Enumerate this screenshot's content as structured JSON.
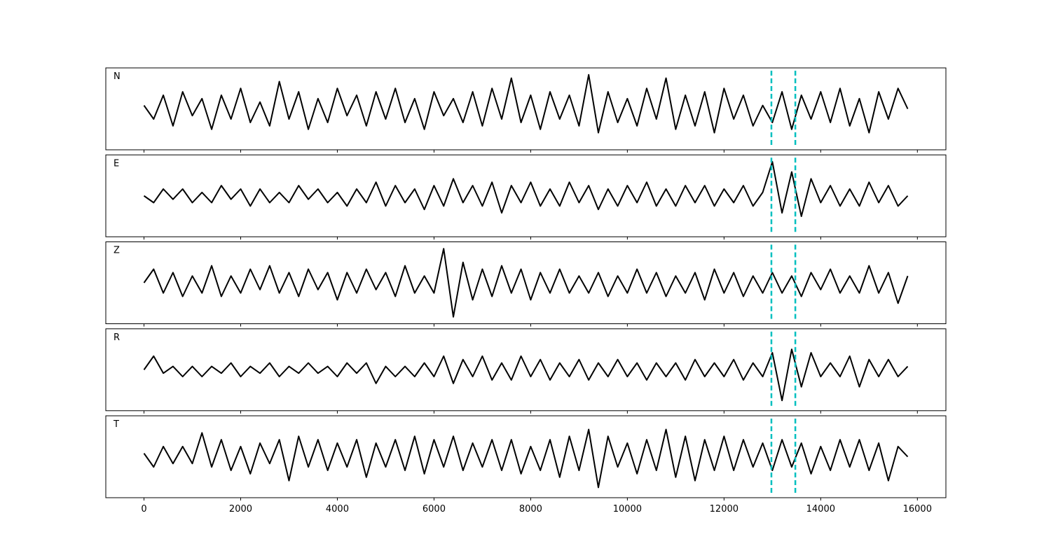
{
  "chart_data": {
    "type": "line",
    "subplots": true,
    "x": [
      0,
      200,
      400,
      600,
      800,
      1000,
      1200,
      1400,
      1600,
      1800,
      2000,
      2200,
      2400,
      2600,
      2800,
      3000,
      3200,
      3400,
      3600,
      3800,
      4000,
      4200,
      4400,
      4600,
      4800,
      5000,
      5200,
      5400,
      5600,
      5800,
      6000,
      6200,
      6400,
      6600,
      6800,
      7000,
      7200,
      7400,
      7600,
      7800,
      8000,
      8200,
      8400,
      8600,
      8800,
      9000,
      9200,
      9400,
      9600,
      9800,
      10000,
      10200,
      10400,
      10600,
      10800,
      11000,
      11200,
      11400,
      11600,
      11800,
      12000,
      12200,
      12400,
      12600,
      12800,
      13000,
      13200,
      13400,
      13600,
      13800,
      14000,
      14200,
      14400,
      14600,
      14800,
      15000,
      15200,
      15400,
      15600,
      15800
    ],
    "xlim": [
      -790,
      16590
    ],
    "xticks": [
      0,
      2000,
      4000,
      6000,
      8000,
      10000,
      12000,
      14000,
      16000
    ],
    "ylim": [
      -1.2,
      1.2
    ],
    "series": [
      {
        "name": "N",
        "color": "#000000",
        "values": [
          0.1,
          -0.3,
          0.4,
          -0.5,
          0.5,
          -0.2,
          0.3,
          -0.6,
          0.4,
          -0.3,
          0.6,
          -0.4,
          0.2,
          -0.5,
          0.8,
          -0.3,
          0.5,
          -0.6,
          0.3,
          -0.4,
          0.6,
          -0.2,
          0.4,
          -0.5,
          0.5,
          -0.3,
          0.6,
          -0.4,
          0.3,
          -0.6,
          0.5,
          -0.2,
          0.3,
          -0.4,
          0.5,
          -0.5,
          0.6,
          -0.3,
          0.9,
          -0.4,
          0.4,
          -0.6,
          0.5,
          -0.3,
          0.4,
          -0.5,
          1.0,
          -0.7,
          0.5,
          -0.4,
          0.3,
          -0.5,
          0.6,
          -0.3,
          0.9,
          -0.6,
          0.4,
          -0.5,
          0.5,
          -0.7,
          0.6,
          -0.3,
          0.4,
          -0.5,
          0.1,
          -0.4,
          0.5,
          -0.6,
          0.4,
          -0.3,
          0.5,
          -0.4,
          0.6,
          -0.5,
          0.3,
          -0.7,
          0.5,
          -0.3,
          0.6,
          0.0
        ]
      },
      {
        "name": "E",
        "color": "#000000",
        "values": [
          0.0,
          -0.2,
          0.2,
          -0.1,
          0.2,
          -0.2,
          0.1,
          -0.2,
          0.3,
          -0.1,
          0.2,
          -0.3,
          0.2,
          -0.2,
          0.1,
          -0.2,
          0.3,
          -0.1,
          0.2,
          -0.2,
          0.1,
          -0.3,
          0.2,
          -0.2,
          0.4,
          -0.3,
          0.3,
          -0.2,
          0.2,
          -0.4,
          0.3,
          -0.3,
          0.5,
          -0.2,
          0.3,
          -0.3,
          0.4,
          -0.5,
          0.3,
          -0.2,
          0.4,
          -0.3,
          0.2,
          -0.3,
          0.4,
          -0.2,
          0.3,
          -0.4,
          0.2,
          -0.3,
          0.3,
          -0.2,
          0.4,
          -0.3,
          0.2,
          -0.3,
          0.3,
          -0.2,
          0.3,
          -0.3,
          0.2,
          -0.2,
          0.3,
          -0.3,
          0.1,
          1.0,
          -0.5,
          0.7,
          -0.6,
          0.5,
          -0.2,
          0.3,
          -0.3,
          0.2,
          -0.3,
          0.4,
          -0.2,
          0.3,
          -0.3,
          0.0
        ]
      },
      {
        "name": "Z",
        "color": "#000000",
        "values": [
          0.0,
          0.4,
          -0.3,
          0.3,
          -0.4,
          0.2,
          -0.3,
          0.5,
          -0.4,
          0.2,
          -0.3,
          0.4,
          -0.2,
          0.5,
          -0.3,
          0.3,
          -0.4,
          0.4,
          -0.2,
          0.3,
          -0.5,
          0.3,
          -0.3,
          0.4,
          -0.2,
          0.3,
          -0.4,
          0.5,
          -0.3,
          0.2,
          -0.3,
          1.0,
          -1.0,
          0.6,
          -0.5,
          0.4,
          -0.4,
          0.5,
          -0.3,
          0.4,
          -0.5,
          0.3,
          -0.3,
          0.4,
          -0.3,
          0.2,
          -0.3,
          0.3,
          -0.4,
          0.2,
          -0.3,
          0.4,
          -0.3,
          0.3,
          -0.4,
          0.2,
          -0.3,
          0.3,
          -0.5,
          0.4,
          -0.3,
          0.3,
          -0.4,
          0.2,
          -0.3,
          0.3,
          -0.3,
          0.2,
          -0.4,
          0.3,
          -0.2,
          0.4,
          -0.3,
          0.2,
          -0.3,
          0.5,
          -0.3,
          0.3,
          -0.6,
          0.2
        ]
      },
      {
        "name": "R",
        "color": "#000000",
        "values": [
          0.0,
          0.4,
          -0.1,
          0.1,
          -0.2,
          0.1,
          -0.2,
          0.1,
          -0.1,
          0.2,
          -0.2,
          0.1,
          -0.1,
          0.2,
          -0.2,
          0.1,
          -0.1,
          0.2,
          -0.1,
          0.1,
          -0.2,
          0.2,
          -0.1,
          0.2,
          -0.4,
          0.1,
          -0.2,
          0.1,
          -0.2,
          0.2,
          -0.2,
          0.4,
          -0.4,
          0.3,
          -0.2,
          0.4,
          -0.3,
          0.2,
          -0.3,
          0.4,
          -0.2,
          0.3,
          -0.3,
          0.2,
          -0.2,
          0.3,
          -0.3,
          0.2,
          -0.2,
          0.3,
          -0.2,
          0.2,
          -0.3,
          0.2,
          -0.2,
          0.2,
          -0.3,
          0.3,
          -0.2,
          0.2,
          -0.2,
          0.3,
          -0.3,
          0.2,
          -0.2,
          0.5,
          -0.9,
          0.6,
          -0.5,
          0.5,
          -0.2,
          0.2,
          -0.2,
          0.4,
          -0.5,
          0.3,
          -0.2,
          0.3,
          -0.2,
          0.1
        ]
      },
      {
        "name": "T",
        "color": "#000000",
        "values": [
          0.1,
          -0.3,
          0.3,
          -0.2,
          0.3,
          -0.2,
          0.7,
          -0.3,
          0.5,
          -0.4,
          0.3,
          -0.5,
          0.4,
          -0.2,
          0.5,
          -0.7,
          0.6,
          -0.3,
          0.5,
          -0.4,
          0.4,
          -0.3,
          0.5,
          -0.6,
          0.4,
          -0.3,
          0.5,
          -0.4,
          0.6,
          -0.5,
          0.5,
          -0.3,
          0.6,
          -0.4,
          0.4,
          -0.3,
          0.5,
          -0.4,
          0.5,
          -0.5,
          0.3,
          -0.4,
          0.5,
          -0.6,
          0.6,
          -0.4,
          0.8,
          -0.9,
          0.6,
          -0.3,
          0.4,
          -0.5,
          0.5,
          -0.4,
          0.8,
          -0.6,
          0.6,
          -0.7,
          0.5,
          -0.4,
          0.6,
          -0.4,
          0.5,
          -0.3,
          0.4,
          -0.4,
          0.5,
          -0.3,
          0.4,
          -0.5,
          0.3,
          -0.4,
          0.5,
          -0.3,
          0.5,
          -0.4,
          0.4,
          -0.7,
          0.3,
          0.0
        ]
      }
    ],
    "vlines": {
      "x": [
        12980,
        13475
      ],
      "color": "#00bfbf",
      "style": "dashed"
    }
  }
}
